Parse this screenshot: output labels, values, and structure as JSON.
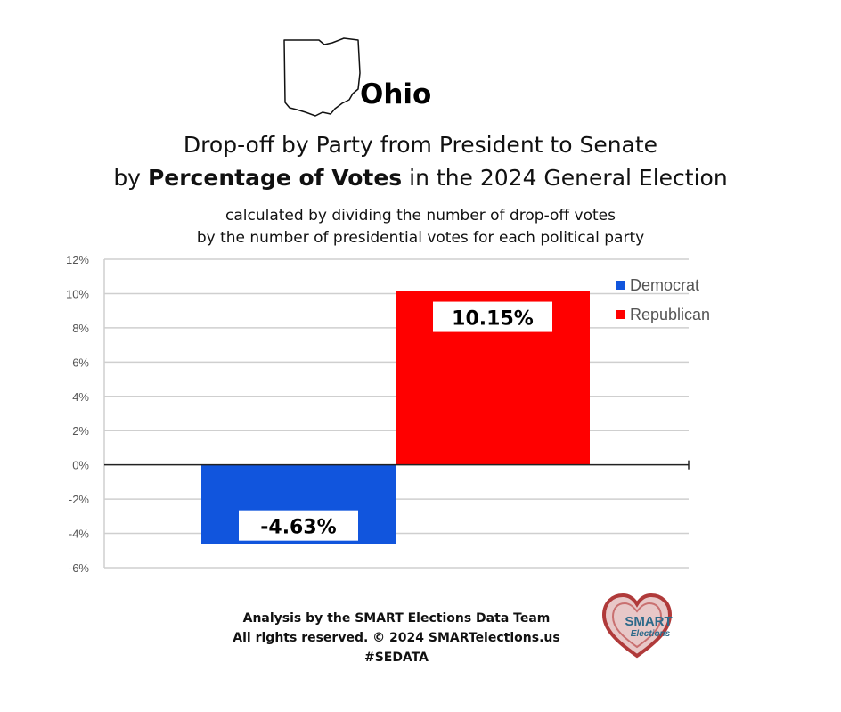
{
  "header": {
    "state": "Ohio",
    "title_line1": "Drop-off by Party from President to Senate",
    "title_line2_prefix": "by ",
    "title_line2_bold": "Percentage of Votes",
    "title_line2_suffix": " in the 2024 General Election",
    "subtitle_line1": "calculated by dividing the number of drop-off votes",
    "subtitle_line2": "by the number of presidential votes for each political party"
  },
  "chart_data": {
    "type": "bar",
    "categories": [
      "Democrat",
      "Republican"
    ],
    "values": [
      -4.63,
      10.15
    ],
    "colors": [
      "#1155dd",
      "#ff0000"
    ],
    "data_labels": [
      "-4.63%",
      "10.15%"
    ],
    "ylim": [
      -6,
      12
    ],
    "yticks": [
      12,
      10,
      8,
      6,
      4,
      2,
      0,
      -2,
      -4,
      -6
    ],
    "ytick_labels": [
      "12%",
      "10%",
      "8%",
      "6%",
      "4%",
      "2%",
      "0%",
      "-2%",
      "-4%",
      "-6%"
    ],
    "legend": [
      {
        "name": "Democrat",
        "color": "#1155dd"
      },
      {
        "name": "Republican",
        "color": "#ff0000"
      }
    ],
    "legend_position": "top-right",
    "grid": true
  },
  "footer": {
    "line1": "Analysis by the SMART Elections Data Team",
    "line2": "All rights reserved. © 2024 SMARTelections.us",
    "line3": "#SEDATA"
  },
  "logo": {
    "line1": "SMART",
    "line2": "Elections"
  }
}
